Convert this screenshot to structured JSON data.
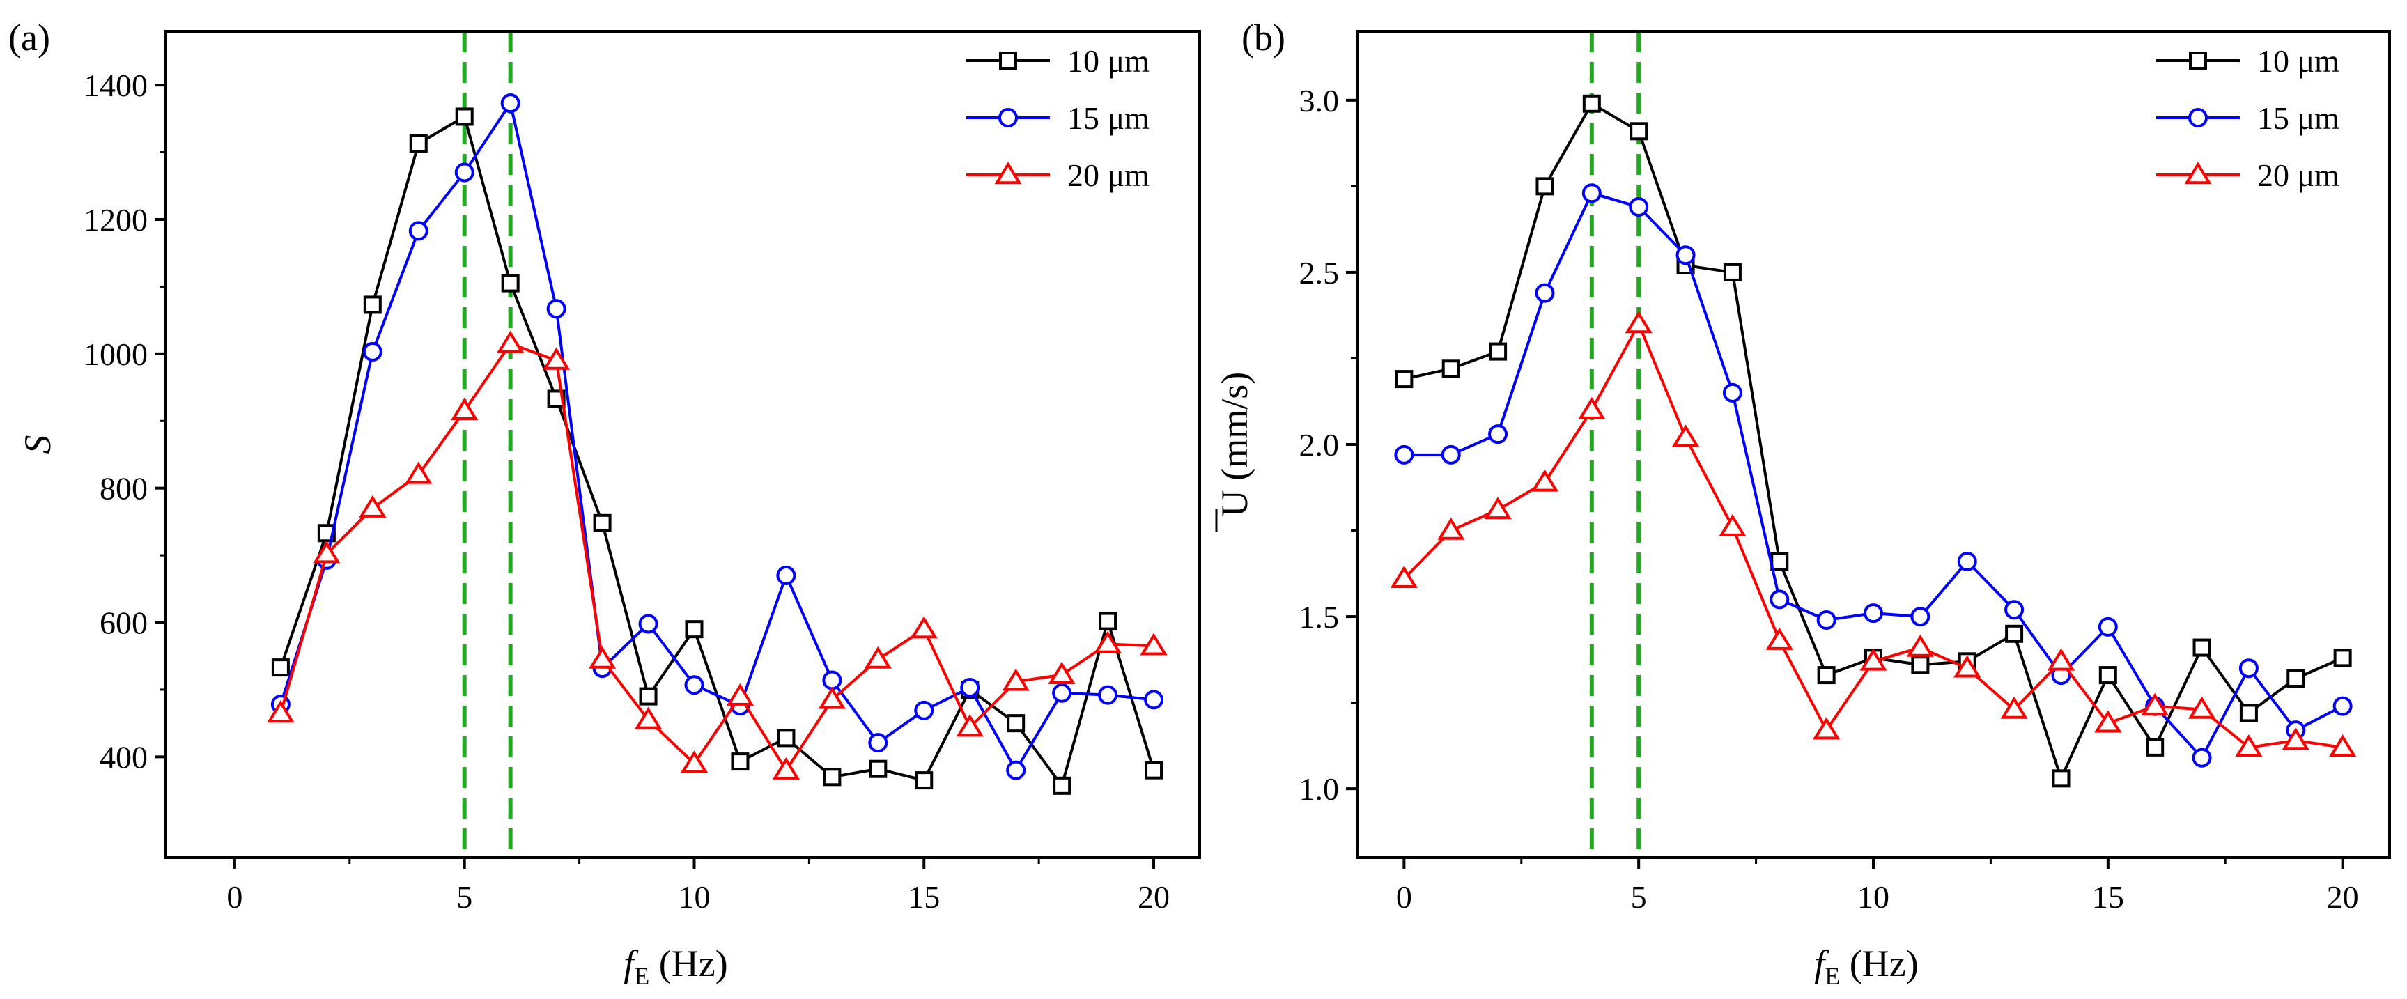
{
  "chart_data": [
    {
      "type": "line",
      "panel_label": "(a)",
      "ylabel": "S",
      "xlabel_main": "f",
      "xlabel_sub": "E",
      "xlabel_unit": "(Hz)",
      "xlim": [
        -1.5,
        21
      ],
      "ylim": [
        250,
        1480
      ],
      "xticks": [
        0,
        5,
        10,
        15,
        20
      ],
      "yticks": [
        400,
        600,
        800,
        1000,
        1200,
        1400
      ],
      "grid": false,
      "legend_position": "top-right",
      "reference_lines": [
        5,
        6
      ],
      "series": [
        {
          "name": "10 μm",
          "marker": "square",
          "color": "#000000",
          "x": [
            1,
            2,
            3,
            4,
            5,
            6,
            7,
            8,
            9,
            10,
            11,
            12,
            13,
            14,
            15,
            16,
            17,
            18,
            19,
            20
          ],
          "y": [
            533,
            733,
            1073,
            1313,
            1353,
            1105,
            933,
            748,
            490,
            590,
            393,
            428,
            370,
            382,
            365,
            500,
            450,
            357,
            602,
            380
          ]
        },
        {
          "name": "15 μm",
          "marker": "circle",
          "color": "#0000ff",
          "x": [
            1,
            2,
            3,
            4,
            5,
            6,
            7,
            8,
            9,
            10,
            11,
            12,
            13,
            14,
            15,
            16,
            17,
            18,
            19,
            20
          ],
          "y": [
            478,
            693,
            1003,
            1183,
            1270,
            1373,
            1067,
            532,
            598,
            507,
            476,
            670,
            514,
            421,
            469,
            503,
            380,
            495,
            492,
            485
          ]
        },
        {
          "name": "20 μm",
          "marker": "triangle",
          "color": "#ff0000",
          "x": [
            1,
            2,
            3,
            4,
            5,
            6,
            7,
            8,
            9,
            10,
            11,
            12,
            13,
            14,
            15,
            16,
            17,
            18,
            19,
            20
          ],
          "y": [
            465,
            702,
            770,
            820,
            915,
            1015,
            990,
            545,
            455,
            390,
            490,
            380,
            485,
            545,
            590,
            444,
            512,
            522,
            568,
            565
          ]
        }
      ]
    },
    {
      "type": "line",
      "panel_label": "(b)",
      "ylabel": "U (mm/s)",
      "xlabel_main": "f",
      "xlabel_sub": "E",
      "xlabel_unit": "(Hz)",
      "xlim": [
        -1,
        21
      ],
      "ylim": [
        0.8,
        3.2
      ],
      "xticks": [
        0,
        5,
        10,
        15,
        20
      ],
      "yticks": [
        "1.0",
        "1.5",
        "2.0",
        "2.5",
        "3.0"
      ],
      "grid": false,
      "legend_position": "top-right",
      "reference_lines": [
        4,
        5
      ],
      "series": [
        {
          "name": "10 μm",
          "marker": "square",
          "color": "#000000",
          "x": [
            0,
            1,
            2,
            3,
            4,
            5,
            6,
            7,
            8,
            9,
            10,
            11,
            12,
            13,
            14,
            15,
            16,
            17,
            18,
            19,
            20
          ],
          "y": [
            2.19,
            2.22,
            2.27,
            2.75,
            2.99,
            2.91,
            2.52,
            2.5,
            1.66,
            1.33,
            1.38,
            1.36,
            1.37,
            1.45,
            1.03,
            1.33,
            1.12,
            1.41,
            1.22,
            1.32,
            1.38
          ]
        },
        {
          "name": "15 μm",
          "marker": "circle",
          "color": "#0000ff",
          "x": [
            0,
            1,
            2,
            3,
            4,
            5,
            6,
            7,
            8,
            9,
            10,
            11,
            12,
            13,
            14,
            15,
            16,
            17,
            18,
            19,
            20
          ],
          "y": [
            1.97,
            1.97,
            2.03,
            2.44,
            2.73,
            2.69,
            2.55,
            2.15,
            1.55,
            1.49,
            1.51,
            1.5,
            1.66,
            1.52,
            1.33,
            1.47,
            1.24,
            1.09,
            1.35,
            1.17,
            1.24
          ]
        },
        {
          "name": "20 μm",
          "marker": "triangle",
          "color": "#ff0000",
          "x": [
            0,
            1,
            2,
            3,
            4,
            5,
            6,
            7,
            8,
            9,
            10,
            11,
            12,
            13,
            14,
            15,
            16,
            17,
            18,
            19,
            20
          ],
          "y": [
            1.61,
            1.75,
            1.81,
            1.89,
            2.1,
            2.35,
            2.02,
            1.76,
            1.43,
            1.17,
            1.37,
            1.41,
            1.35,
            1.23,
            1.37,
            1.19,
            1.24,
            1.23,
            1.12,
            1.14,
            1.12
          ]
        }
      ]
    }
  ]
}
